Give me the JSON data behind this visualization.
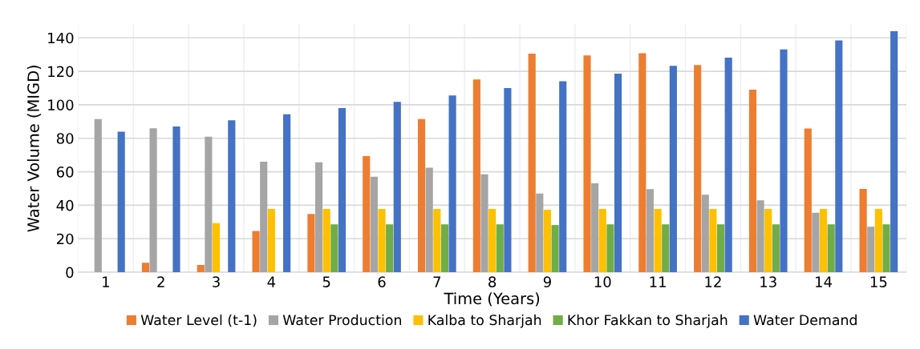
{
  "chart_data": {
    "type": "bar",
    "xlabel": "Time (Years)",
    "ylabel": "Water Volume (MIGD)",
    "categories": [
      "1",
      "2",
      "3",
      "4",
      "5",
      "6",
      "7",
      "8",
      "9",
      "10",
      "11",
      "12",
      "13",
      "14",
      "15"
    ],
    "series": [
      {
        "name": "Water Level (t-1)",
        "color": "#ed7d31",
        "values": [
          0,
          5.7,
          4.3,
          24.6,
          34.8,
          69.4,
          91.5,
          115.2,
          130.5,
          129.5,
          130.8,
          123.8,
          109,
          85.8,
          49.8
        ]
      },
      {
        "name": "Water Production",
        "color": "#a5a5a5",
        "values": [
          91.5,
          86,
          81,
          66,
          65.7,
          57.1,
          62.4,
          58.5,
          47,
          53.1,
          49.6,
          46.3,
          43,
          35.5,
          27.2
        ]
      },
      {
        "name": "Kalba to Sharjah",
        "color": "#ffc000",
        "values": [
          0,
          0,
          29.3,
          37.8,
          37.8,
          37.8,
          37.8,
          37.8,
          37.3,
          37.8,
          37.8,
          37.8,
          37.8,
          37.8,
          37.8
        ]
      },
      {
        "name": "Khor Fakkan to Sharjah",
        "color": "#70ad47",
        "values": [
          0,
          0,
          0,
          0,
          28.6,
          28.6,
          28.6,
          28.6,
          28.2,
          28.6,
          28.6,
          28.6,
          28.6,
          28.6,
          28.6
        ]
      },
      {
        "name": "Water Demand",
        "color": "#4472c4",
        "values": [
          84,
          87,
          90.8,
          94.3,
          98,
          101.8,
          105.6,
          110,
          114.1,
          118.6,
          123.3,
          128.2,
          133.1,
          138.5,
          143.9
        ]
      }
    ],
    "ylim": [
      0,
      148
    ],
    "yticks": [
      0,
      20,
      40,
      60,
      80,
      100,
      120,
      140
    ],
    "grid": true,
    "legend": "bottom"
  }
}
